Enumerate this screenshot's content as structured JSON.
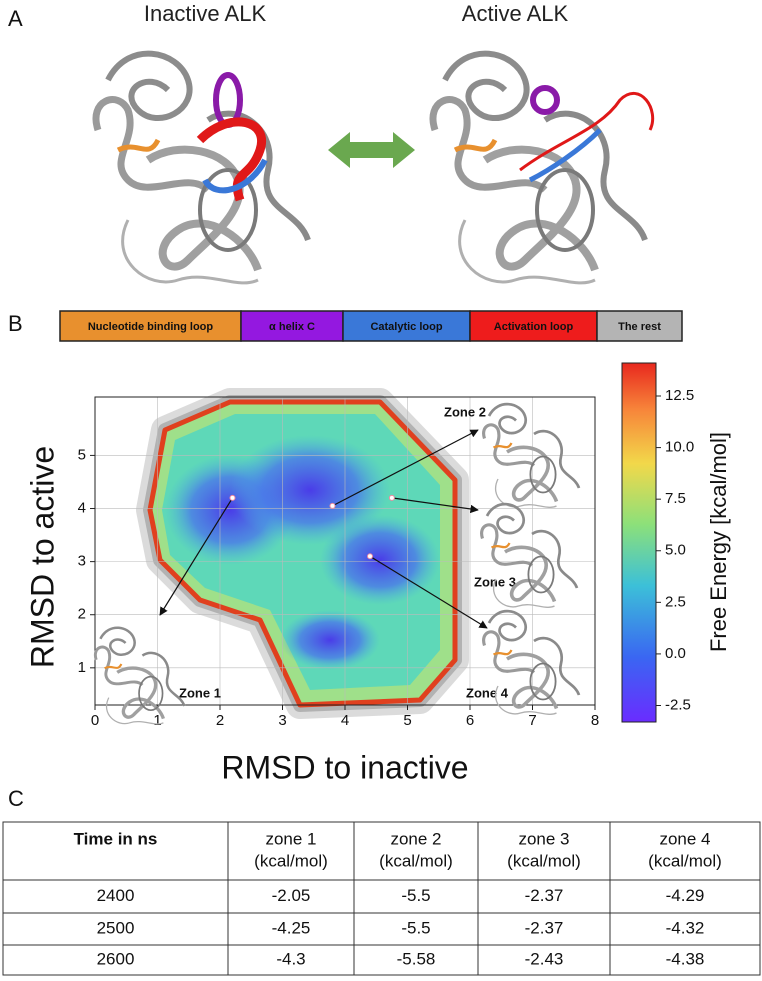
{
  "panels": {
    "a": "A",
    "b": "B",
    "c": "C"
  },
  "panel_a": {
    "left_title": "Inactive ALK",
    "right_title": "Active ALK"
  },
  "legend": [
    {
      "name": "Nucleotide binding loop",
      "color": "#e8902e"
    },
    {
      "name": "α helix C",
      "color": "#9418e0"
    },
    {
      "name": "Catalytic loop",
      "color": "#3a78d8"
    },
    {
      "name": "Activation loop",
      "color": "#ee1c1c"
    },
    {
      "name": "The rest",
      "color": "#b4b4b4"
    }
  ],
  "chart_data": {
    "type": "landscape",
    "xlabel": "RMSD to inactive",
    "ylabel": "RMSD to active",
    "xlim": [
      0,
      8
    ],
    "ylim": [
      0.3,
      6.1
    ],
    "xticks": [
      0,
      1,
      2,
      3,
      4,
      5,
      6,
      7,
      8
    ],
    "yticks": [
      1,
      2,
      3,
      4,
      5
    ],
    "grid": true,
    "colorbar": {
      "label": "Free Energy [kcal/mol]",
      "lim": [
        -3.3,
        14.1
      ],
      "ticks": [
        -2.5,
        {
          "value": 0,
          "label": "0.0"
        },
        2.5,
        {
          "value": 5,
          "label": "5.0"
        },
        7.5,
        {
          "value": 10,
          "label": "10.0"
        },
        12.5
      ]
    },
    "zones": [
      {
        "label": "Zone 1",
        "x": 2.2,
        "y": 4.2
      },
      {
        "label": "Zone 2",
        "x": 3.8,
        "y": 4.05
      },
      {
        "label": "Zone 3",
        "x": 4.75,
        "y": 4.2
      },
      {
        "label": "Zone 4",
        "x": 4.4,
        "y": 3.1
      }
    ]
  },
  "table": {
    "header": [
      [
        "Time in ns"
      ],
      [
        "zone 1",
        "(kcal/mol)"
      ],
      [
        "zone 2",
        "(kcal/mol)"
      ],
      [
        "zone 3",
        "(kcal/mol)"
      ],
      [
        "zone 4",
        "(kcal/mol)"
      ]
    ],
    "rows": [
      [
        2400,
        -2.05,
        -5.5,
        -2.37,
        -4.29
      ],
      [
        2500,
        -4.25,
        -5.5,
        -2.37,
        -4.32
      ],
      [
        2600,
        -4.3,
        -5.58,
        -2.43,
        -4.38
      ]
    ]
  }
}
